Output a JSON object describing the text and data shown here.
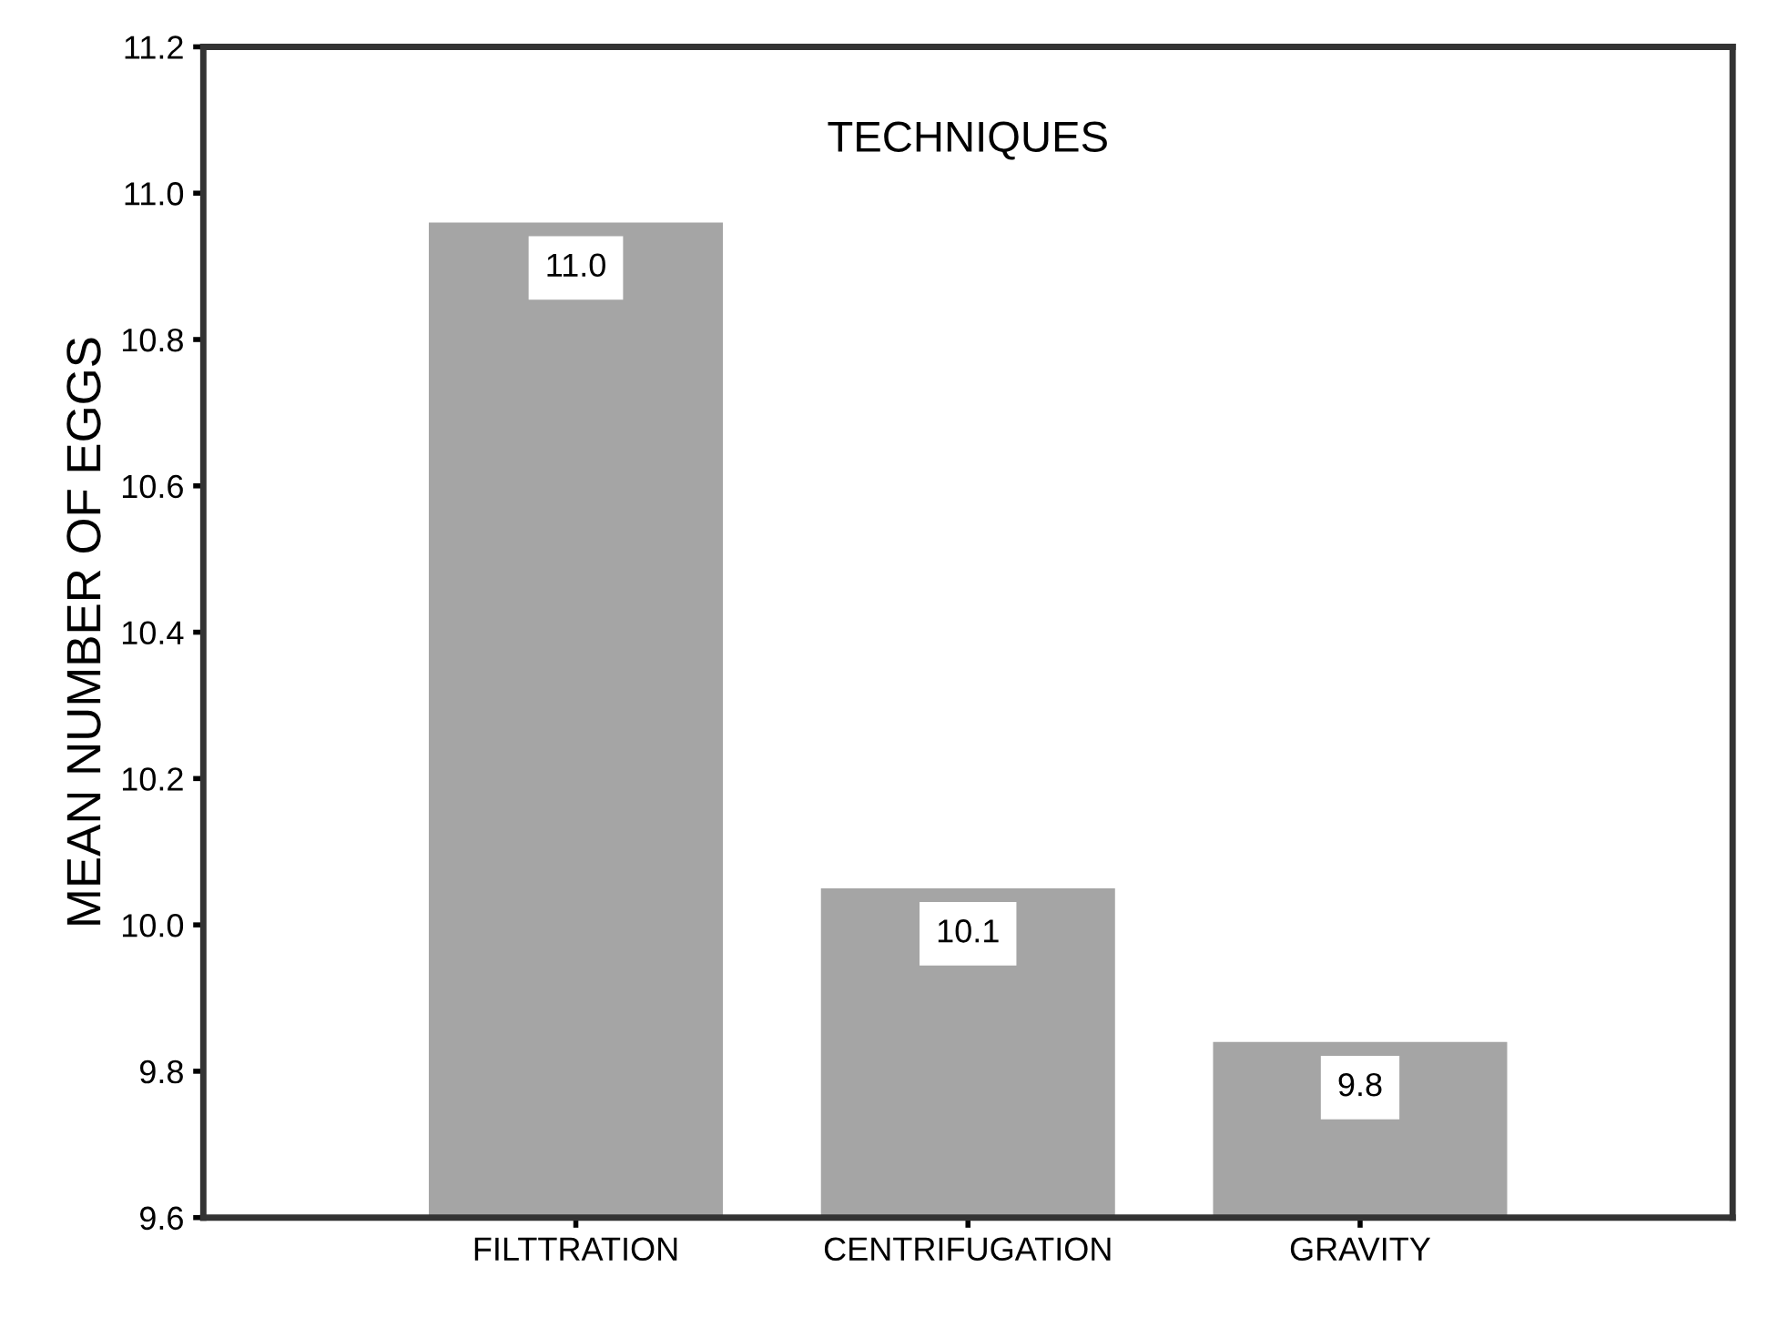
{
  "chart_data": {
    "type": "bar",
    "title": "TECHNIQUES",
    "ylabel": "MEAN NUMBER OF EGGS",
    "categories": [
      "FILTTRATION",
      "CENTRIFUGATION",
      "GRAVITY"
    ],
    "values": [
      10.96,
      10.05,
      9.84
    ],
    "value_labels": [
      "11.0",
      "10.1",
      "9.8"
    ],
    "color": "#a5a5a5",
    "ylim": [
      9.6,
      11.2
    ],
    "yticks": [
      9.6,
      9.8,
      {
        "value": 10,
        "label": "10.0"
      },
      10.2,
      10.4,
      10.6,
      10.8,
      {
        "value": 11,
        "label": "11.0"
      },
      11.2
    ],
    "grid": false,
    "legend": false
  }
}
